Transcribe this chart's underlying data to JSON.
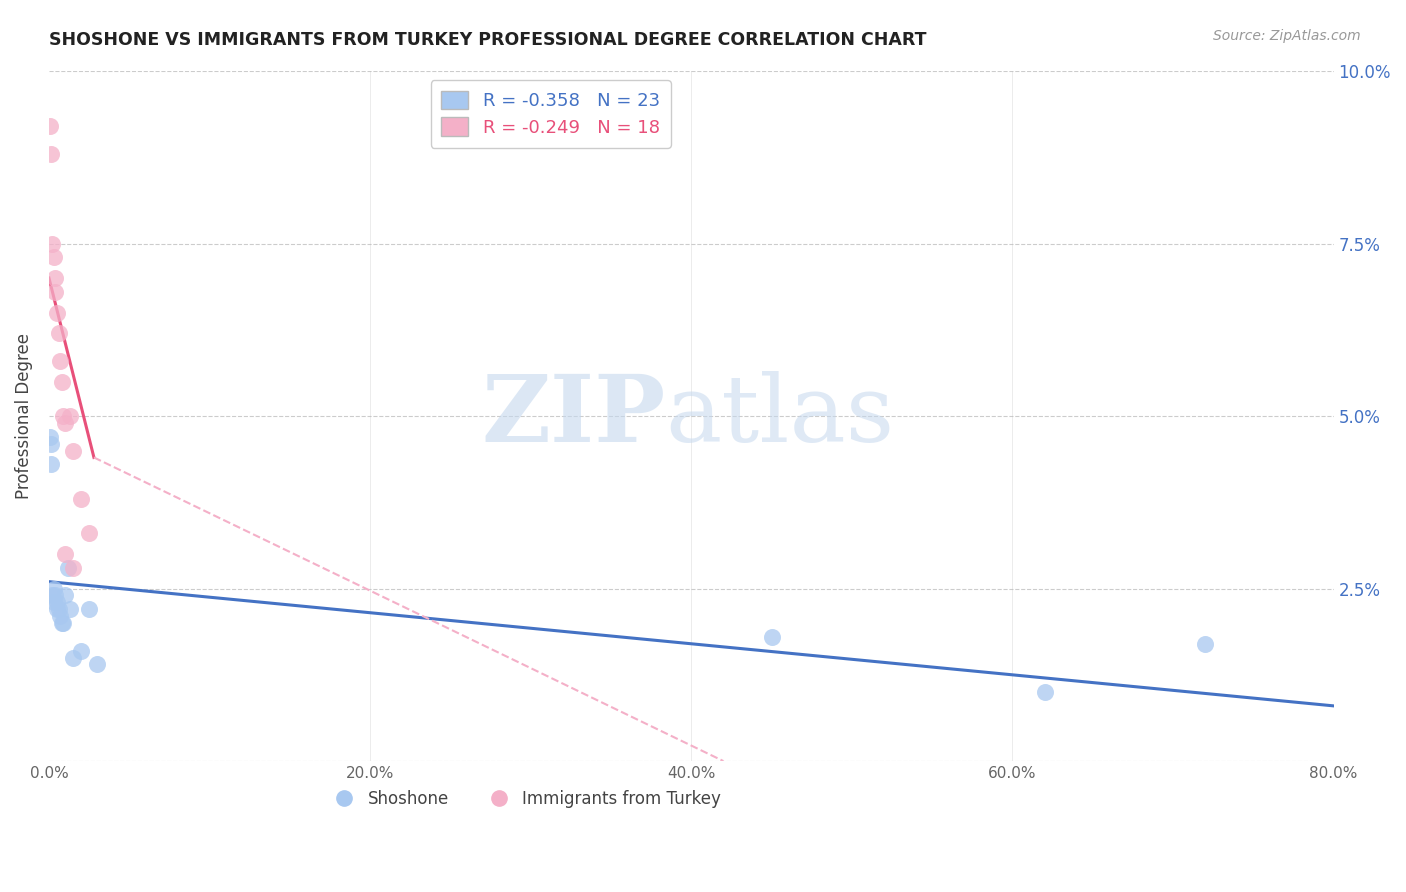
{
  "title": "SHOSHONE VS IMMIGRANTS FROM TURKEY PROFESSIONAL DEGREE CORRELATION CHART",
  "source": "Source: ZipAtlas.com",
  "ylabel": "Professional Degree",
  "xlim": [
    0.0,
    0.8
  ],
  "ylim": [
    0.0,
    0.1
  ],
  "blue_r": -0.358,
  "blue_n": 23,
  "pink_r": -0.249,
  "pink_n": 18,
  "blue_scatter_color": "#A8C8F0",
  "pink_scatter_color": "#F4B0C8",
  "blue_line_color": "#4472C4",
  "pink_line_solid_color": "#E8507A",
  "pink_line_dash_color": "#F4B0C8",
  "watermark_ZIP": "ZIP",
  "watermark_atlas": "atlas",
  "legend_blue_label": "Shoshone",
  "legend_pink_label": "Immigrants from Turkey",
  "blue_x": [
    0.0005,
    0.001,
    0.001,
    0.002,
    0.003,
    0.003,
    0.004,
    0.005,
    0.005,
    0.006,
    0.007,
    0.008,
    0.009,
    0.01,
    0.012,
    0.013,
    0.015,
    0.02,
    0.025,
    0.03,
    0.45,
    0.62,
    0.72
  ],
  "blue_y": [
    0.047,
    0.043,
    0.046,
    0.024,
    0.025,
    0.023,
    0.024,
    0.023,
    0.022,
    0.022,
    0.021,
    0.02,
    0.02,
    0.024,
    0.028,
    0.022,
    0.015,
    0.016,
    0.022,
    0.014,
    0.018,
    0.01,
    0.017
  ],
  "pink_x": [
    0.0005,
    0.001,
    0.002,
    0.003,
    0.004,
    0.004,
    0.005,
    0.006,
    0.007,
    0.008,
    0.009,
    0.01,
    0.013,
    0.015,
    0.02,
    0.025,
    0.01,
    0.015
  ],
  "pink_y": [
    0.092,
    0.088,
    0.075,
    0.073,
    0.07,
    0.068,
    0.065,
    0.062,
    0.058,
    0.055,
    0.05,
    0.049,
    0.05,
    0.045,
    0.038,
    0.033,
    0.03,
    0.028
  ],
  "blue_line_x0": 0.0,
  "blue_line_x1": 0.8,
  "blue_line_y0": 0.026,
  "blue_line_y1": 0.008,
  "pink_line_solid_x0": 0.0,
  "pink_line_solid_x1": 0.028,
  "pink_line_solid_y0": 0.07,
  "pink_line_solid_y1": 0.044,
  "pink_line_dash_x0": 0.028,
  "pink_line_dash_x1": 0.42,
  "pink_line_dash_y0": 0.044,
  "pink_line_dash_y1": 0.0,
  "right_yticks": [
    0.025,
    0.05,
    0.075,
    0.1
  ],
  "right_ytick_labels": [
    "2.5%",
    "5.0%",
    "7.5%",
    "10.0%"
  ],
  "xticks": [
    0.0,
    0.2,
    0.4,
    0.6,
    0.8
  ],
  "xtick_labels": [
    "0.0%",
    "20.0%",
    "40.0%",
    "60.0%",
    "80.0%"
  ]
}
